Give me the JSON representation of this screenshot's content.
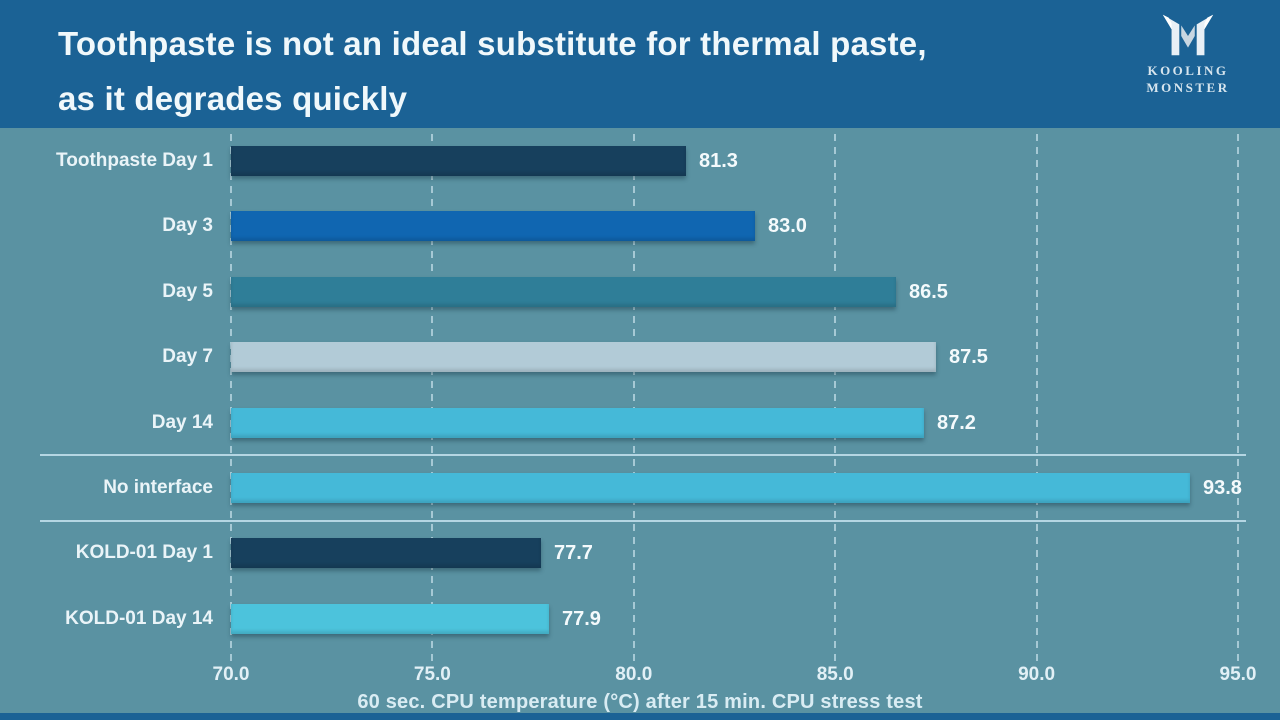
{
  "header": {
    "title_line1": "Toothpaste is not an ideal substitute for thermal paste,",
    "title_line2": "as it degrades quickly",
    "logo": {
      "icon": "kooling-monster-m-icon",
      "text_line1": "KOOLING",
      "text_line2": "MONSTER"
    }
  },
  "chart_data": {
    "type": "bar",
    "orientation": "horizontal",
    "title": "Toothpaste is not an ideal substitute for thermal paste, as it degrades quickly",
    "categories": [
      "Toothpaste Day 1",
      "Day 3",
      "Day 5",
      "Day 7",
      "Day 14",
      "No interface",
      "KOLD-01 Day 1",
      "KOLD-01 Day 14"
    ],
    "values": [
      81.3,
      83.0,
      86.5,
      87.5,
      87.2,
      93.8,
      77.7,
      77.9
    ],
    "value_labels": [
      "81.3",
      "83.0",
      "86.5",
      "87.5",
      "87.2",
      "93.8",
      "77.7",
      "77.9"
    ],
    "bar_colors": [
      "#17405d",
      "#1066b1",
      "#2f7e98",
      "#b2cbd7",
      "#45b9d8",
      "#45b9d8",
      "#17405d",
      "#4cc3dc"
    ],
    "xlabel": "60 sec. CPU temperature (°C) after 15 min. CPU stress test",
    "ylabel": "",
    "xlim": [
      70.0,
      95.0
    ],
    "xticks": [
      70.0,
      75.0,
      80.0,
      85.0,
      90.0,
      95.0
    ],
    "xtick_labels": [
      "70.0",
      "75.0",
      "80.0",
      "85.0",
      "90.0",
      "95.0"
    ],
    "grid": "vertical-dashed",
    "legend": "none",
    "separators_after_category_index": [
      4,
      5
    ],
    "colors": {
      "background": "#5a92a2",
      "header_band": "#1b6295",
      "bottom_band": "#1b6295",
      "grid_line": "#cfe7f0",
      "separator_line": "#c6e2ee",
      "category_text": "#eaf4f8",
      "value_text": "#f4fafc",
      "tick_text": "#e2f0f6",
      "axis_label_text": "#d9ecf3",
      "title_text": "#f0f8fb"
    }
  }
}
